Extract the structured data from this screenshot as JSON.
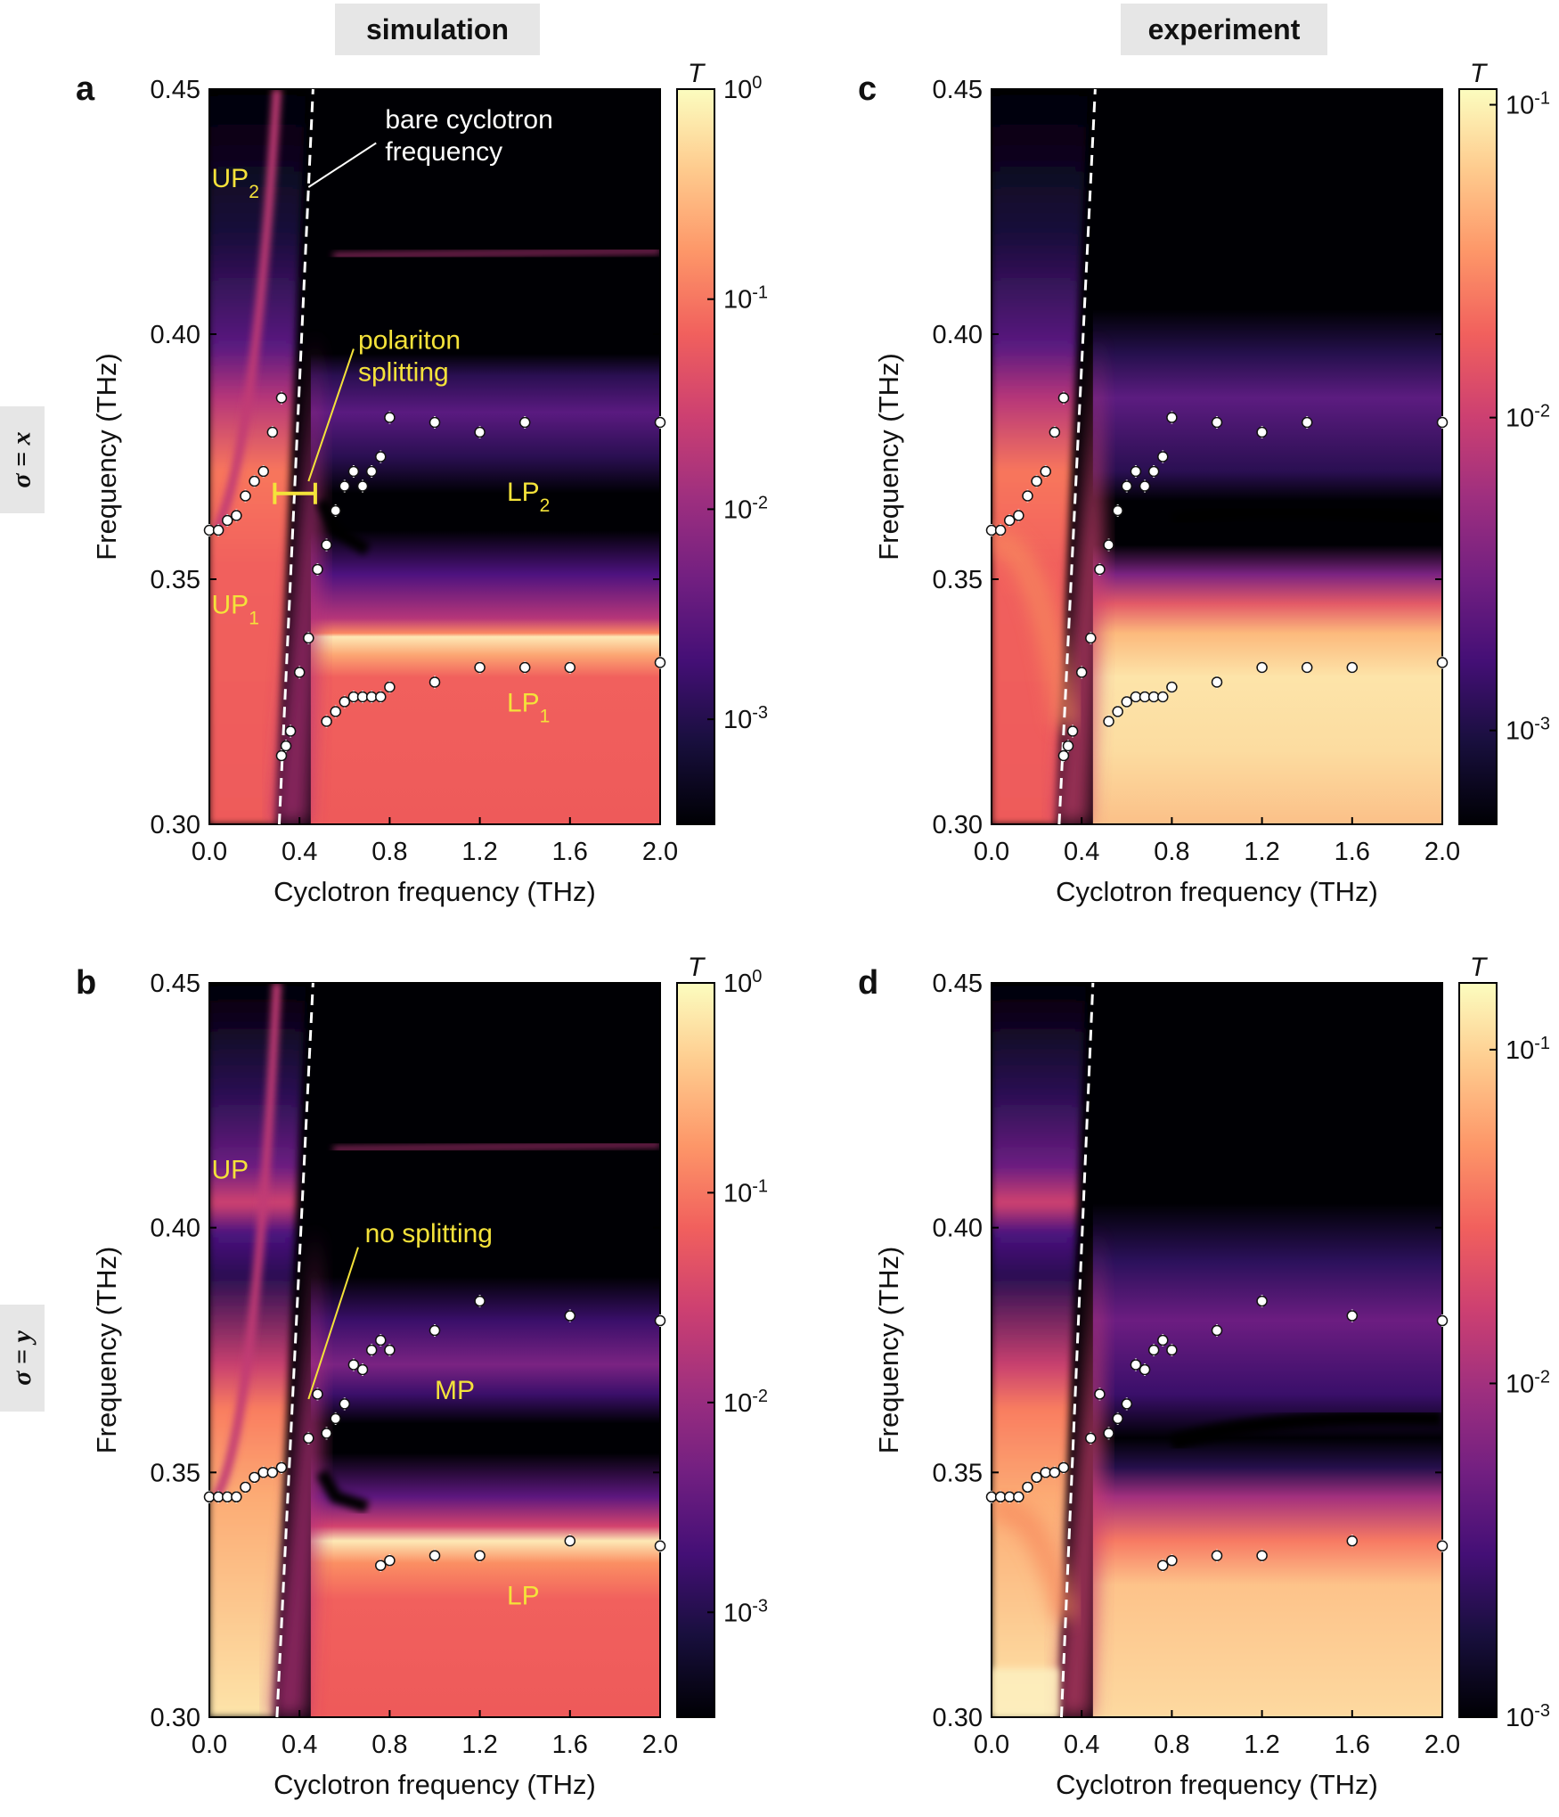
{
  "column_headers": [
    "simulation",
    "experiment"
  ],
  "row_headers": [
    "σ = x",
    "σ = y"
  ],
  "colors": {
    "annotation_white": "#ffffff",
    "annotation_yellow": "#f4e23a",
    "colormap": [
      "#000004",
      "#180f3d",
      "#440f76",
      "#721f81",
      "#9e2f7f",
      "#cd4071",
      "#f1605d",
      "#fd9668",
      "#feca8d",
      "#fcfdbf"
    ]
  },
  "chart_data": [
    {
      "panel": "a",
      "type": "heatmap",
      "xlabel": "Cyclotron frequency (THz)",
      "ylabel": "Frequency (THz)",
      "xlim": [
        0,
        2.0
      ],
      "ylim": [
        0.3,
        0.45
      ],
      "xticks": [
        "0.0",
        "0.4",
        "0.8",
        "1.2",
        "1.6",
        "2.0"
      ],
      "yticks": [
        "0.30",
        "0.35",
        "0.40",
        "0.45"
      ],
      "colorbar": {
        "label": "T",
        "ticks": [
          "10",
          "10",
          "10",
          "10"
        ],
        "exponents": [
          "-3",
          "-2",
          "-1",
          "0"
        ],
        "log_range": [
          -3.5,
          0
        ]
      },
      "bare_cyclotron_line": [
        [
          0.31,
          0.3
        ],
        [
          0.46,
          0.45
        ]
      ],
      "annotations": [
        {
          "text": "bare cyclotron",
          "text2": "frequency",
          "color": "white"
        },
        {
          "text": "UP",
          "sub": "2",
          "color": "yellow"
        },
        {
          "text": "polariton",
          "text2": "splitting",
          "color": "yellow"
        },
        {
          "text": "LP",
          "sub": "2",
          "color": "yellow"
        },
        {
          "text": "UP",
          "sub": "1",
          "color": "yellow"
        },
        {
          "text": "LP",
          "sub": "1",
          "color": "yellow"
        }
      ],
      "points": [
        [
          0.0,
          0.36
        ],
        [
          0.04,
          0.36
        ],
        [
          0.08,
          0.362
        ],
        [
          0.12,
          0.363
        ],
        [
          0.16,
          0.367
        ],
        [
          0.2,
          0.37
        ],
        [
          0.24,
          0.372
        ],
        [
          0.28,
          0.38
        ],
        [
          0.32,
          0.387
        ],
        [
          0.32,
          0.314
        ],
        [
          0.34,
          0.316
        ],
        [
          0.36,
          0.319
        ],
        [
          0.4,
          0.331
        ],
        [
          0.44,
          0.338
        ],
        [
          0.48,
          0.352
        ],
        [
          0.52,
          0.357
        ],
        [
          0.56,
          0.364
        ],
        [
          0.6,
          0.369
        ],
        [
          0.64,
          0.372
        ],
        [
          0.68,
          0.369
        ],
        [
          0.72,
          0.372
        ],
        [
          0.76,
          0.375
        ],
        [
          0.8,
          0.383
        ],
        [
          1.0,
          0.382
        ],
        [
          1.2,
          0.38
        ],
        [
          1.4,
          0.382
        ],
        [
          2.0,
          0.382
        ],
        [
          0.52,
          0.321
        ],
        [
          0.56,
          0.323
        ],
        [
          0.6,
          0.325
        ],
        [
          0.64,
          0.326
        ],
        [
          0.68,
          0.326
        ],
        [
          0.72,
          0.326
        ],
        [
          0.76,
          0.326
        ],
        [
          0.8,
          0.328
        ],
        [
          1.0,
          0.329
        ],
        [
          1.2,
          0.332
        ],
        [
          1.4,
          0.332
        ],
        [
          1.6,
          0.332
        ],
        [
          2.0,
          0.333
        ]
      ]
    },
    {
      "panel": "b",
      "type": "heatmap",
      "xlabel": "Cyclotron frequency (THz)",
      "ylabel": "Frequency (THz)",
      "xlim": [
        0,
        2.0
      ],
      "ylim": [
        0.3,
        0.45
      ],
      "xticks": [
        "0.0",
        "0.4",
        "0.8",
        "1.2",
        "1.6",
        "2.0"
      ],
      "yticks": [
        "0.30",
        "0.35",
        "0.40",
        "0.45"
      ],
      "colorbar": {
        "label": "T",
        "ticks": [
          "10",
          "10",
          "10",
          "10"
        ],
        "exponents": [
          "-3",
          "-2",
          "-1",
          "0"
        ],
        "log_range": [
          -3.5,
          0
        ]
      },
      "bare_cyclotron_line": [
        [
          0.3,
          0.3
        ],
        [
          0.46,
          0.45
        ]
      ],
      "annotations": [
        {
          "text": "UP",
          "color": "yellow"
        },
        {
          "text": "no splitting",
          "color": "yellow"
        },
        {
          "text": "MP",
          "color": "yellow"
        },
        {
          "text": "LP",
          "color": "yellow"
        }
      ],
      "points": [
        [
          0.0,
          0.345
        ],
        [
          0.04,
          0.345
        ],
        [
          0.08,
          0.345
        ],
        [
          0.12,
          0.345
        ],
        [
          0.16,
          0.347
        ],
        [
          0.2,
          0.349
        ],
        [
          0.24,
          0.35
        ],
        [
          0.28,
          0.35
        ],
        [
          0.32,
          0.351
        ],
        [
          0.44,
          0.357
        ],
        [
          0.48,
          0.366
        ],
        [
          0.52,
          0.358
        ],
        [
          0.56,
          0.361
        ],
        [
          0.6,
          0.364
        ],
        [
          0.64,
          0.372
        ],
        [
          0.68,
          0.371
        ],
        [
          0.72,
          0.375
        ],
        [
          0.76,
          0.377
        ],
        [
          0.8,
          0.375
        ],
        [
          1.0,
          0.379
        ],
        [
          1.2,
          0.385
        ],
        [
          1.6,
          0.382
        ],
        [
          2.0,
          0.381
        ],
        [
          0.76,
          0.331
        ],
        [
          0.8,
          0.332
        ],
        [
          1.0,
          0.333
        ],
        [
          1.2,
          0.333
        ],
        [
          1.6,
          0.336
        ],
        [
          2.0,
          0.335
        ]
      ]
    },
    {
      "panel": "c",
      "type": "heatmap",
      "xlabel": "Cyclotron frequency (THz)",
      "ylabel": "Frequency (THz)",
      "xlim": [
        0,
        2.0
      ],
      "ylim": [
        0.3,
        0.45
      ],
      "xticks": [
        "0.0",
        "0.4",
        "0.8",
        "1.2",
        "1.6",
        "2.0"
      ],
      "yticks": [
        "0.30",
        "0.35",
        "0.40",
        "0.45"
      ],
      "colorbar": {
        "label": "T",
        "ticks": [
          "10",
          "10",
          "10"
        ],
        "exponents": [
          "-3",
          "-2",
          "-1"
        ],
        "log_range": [
          -3.3,
          -0.95
        ]
      },
      "bare_cyclotron_line": [
        [
          0.3,
          0.3
        ],
        [
          0.46,
          0.45
        ]
      ],
      "annotations": [],
      "points": [
        [
          0.0,
          0.36
        ],
        [
          0.04,
          0.36
        ],
        [
          0.08,
          0.362
        ],
        [
          0.12,
          0.363
        ],
        [
          0.16,
          0.367
        ],
        [
          0.2,
          0.37
        ],
        [
          0.24,
          0.372
        ],
        [
          0.28,
          0.38
        ],
        [
          0.32,
          0.387
        ],
        [
          0.32,
          0.314
        ],
        [
          0.34,
          0.316
        ],
        [
          0.36,
          0.319
        ],
        [
          0.4,
          0.331
        ],
        [
          0.44,
          0.338
        ],
        [
          0.48,
          0.352
        ],
        [
          0.52,
          0.357
        ],
        [
          0.56,
          0.364
        ],
        [
          0.6,
          0.369
        ],
        [
          0.64,
          0.372
        ],
        [
          0.68,
          0.369
        ],
        [
          0.72,
          0.372
        ],
        [
          0.76,
          0.375
        ],
        [
          0.8,
          0.383
        ],
        [
          1.0,
          0.382
        ],
        [
          1.2,
          0.38
        ],
        [
          1.4,
          0.382
        ],
        [
          2.0,
          0.382
        ],
        [
          0.52,
          0.321
        ],
        [
          0.56,
          0.323
        ],
        [
          0.6,
          0.325
        ],
        [
          0.64,
          0.326
        ],
        [
          0.68,
          0.326
        ],
        [
          0.72,
          0.326
        ],
        [
          0.76,
          0.326
        ],
        [
          0.8,
          0.328
        ],
        [
          1.0,
          0.329
        ],
        [
          1.2,
          0.332
        ],
        [
          1.4,
          0.332
        ],
        [
          1.6,
          0.332
        ],
        [
          2.0,
          0.333
        ]
      ]
    },
    {
      "panel": "d",
      "type": "heatmap",
      "xlabel": "Cyclotron frequency (THz)",
      "ylabel": "Frequency (THz)",
      "xlim": [
        0,
        2.0
      ],
      "ylim": [
        0.3,
        0.45
      ],
      "xticks": [
        "0.0",
        "0.4",
        "0.8",
        "1.2",
        "1.6",
        "2.0"
      ],
      "yticks": [
        "0.30",
        "0.35",
        "0.40",
        "0.45"
      ],
      "colorbar": {
        "label": "T",
        "ticks": [
          "10",
          "10",
          "10"
        ],
        "exponents": [
          "-3",
          "-2",
          "-1"
        ],
        "log_range": [
          -3.0,
          -0.8
        ]
      },
      "bare_cyclotron_line": [
        [
          0.31,
          0.3
        ],
        [
          0.45,
          0.45
        ]
      ],
      "annotations": [],
      "points": [
        [
          0.0,
          0.345
        ],
        [
          0.04,
          0.345
        ],
        [
          0.08,
          0.345
        ],
        [
          0.12,
          0.345
        ],
        [
          0.16,
          0.347
        ],
        [
          0.2,
          0.349
        ],
        [
          0.24,
          0.35
        ],
        [
          0.28,
          0.35
        ],
        [
          0.32,
          0.351
        ],
        [
          0.44,
          0.357
        ],
        [
          0.48,
          0.366
        ],
        [
          0.52,
          0.358
        ],
        [
          0.56,
          0.361
        ],
        [
          0.6,
          0.364
        ],
        [
          0.64,
          0.372
        ],
        [
          0.68,
          0.371
        ],
        [
          0.72,
          0.375
        ],
        [
          0.76,
          0.377
        ],
        [
          0.8,
          0.375
        ],
        [
          1.0,
          0.379
        ],
        [
          1.2,
          0.385
        ],
        [
          1.6,
          0.382
        ],
        [
          2.0,
          0.381
        ],
        [
          0.76,
          0.331
        ],
        [
          0.8,
          0.332
        ],
        [
          1.0,
          0.333
        ],
        [
          1.2,
          0.333
        ],
        [
          1.6,
          0.336
        ],
        [
          2.0,
          0.335
        ]
      ]
    }
  ]
}
